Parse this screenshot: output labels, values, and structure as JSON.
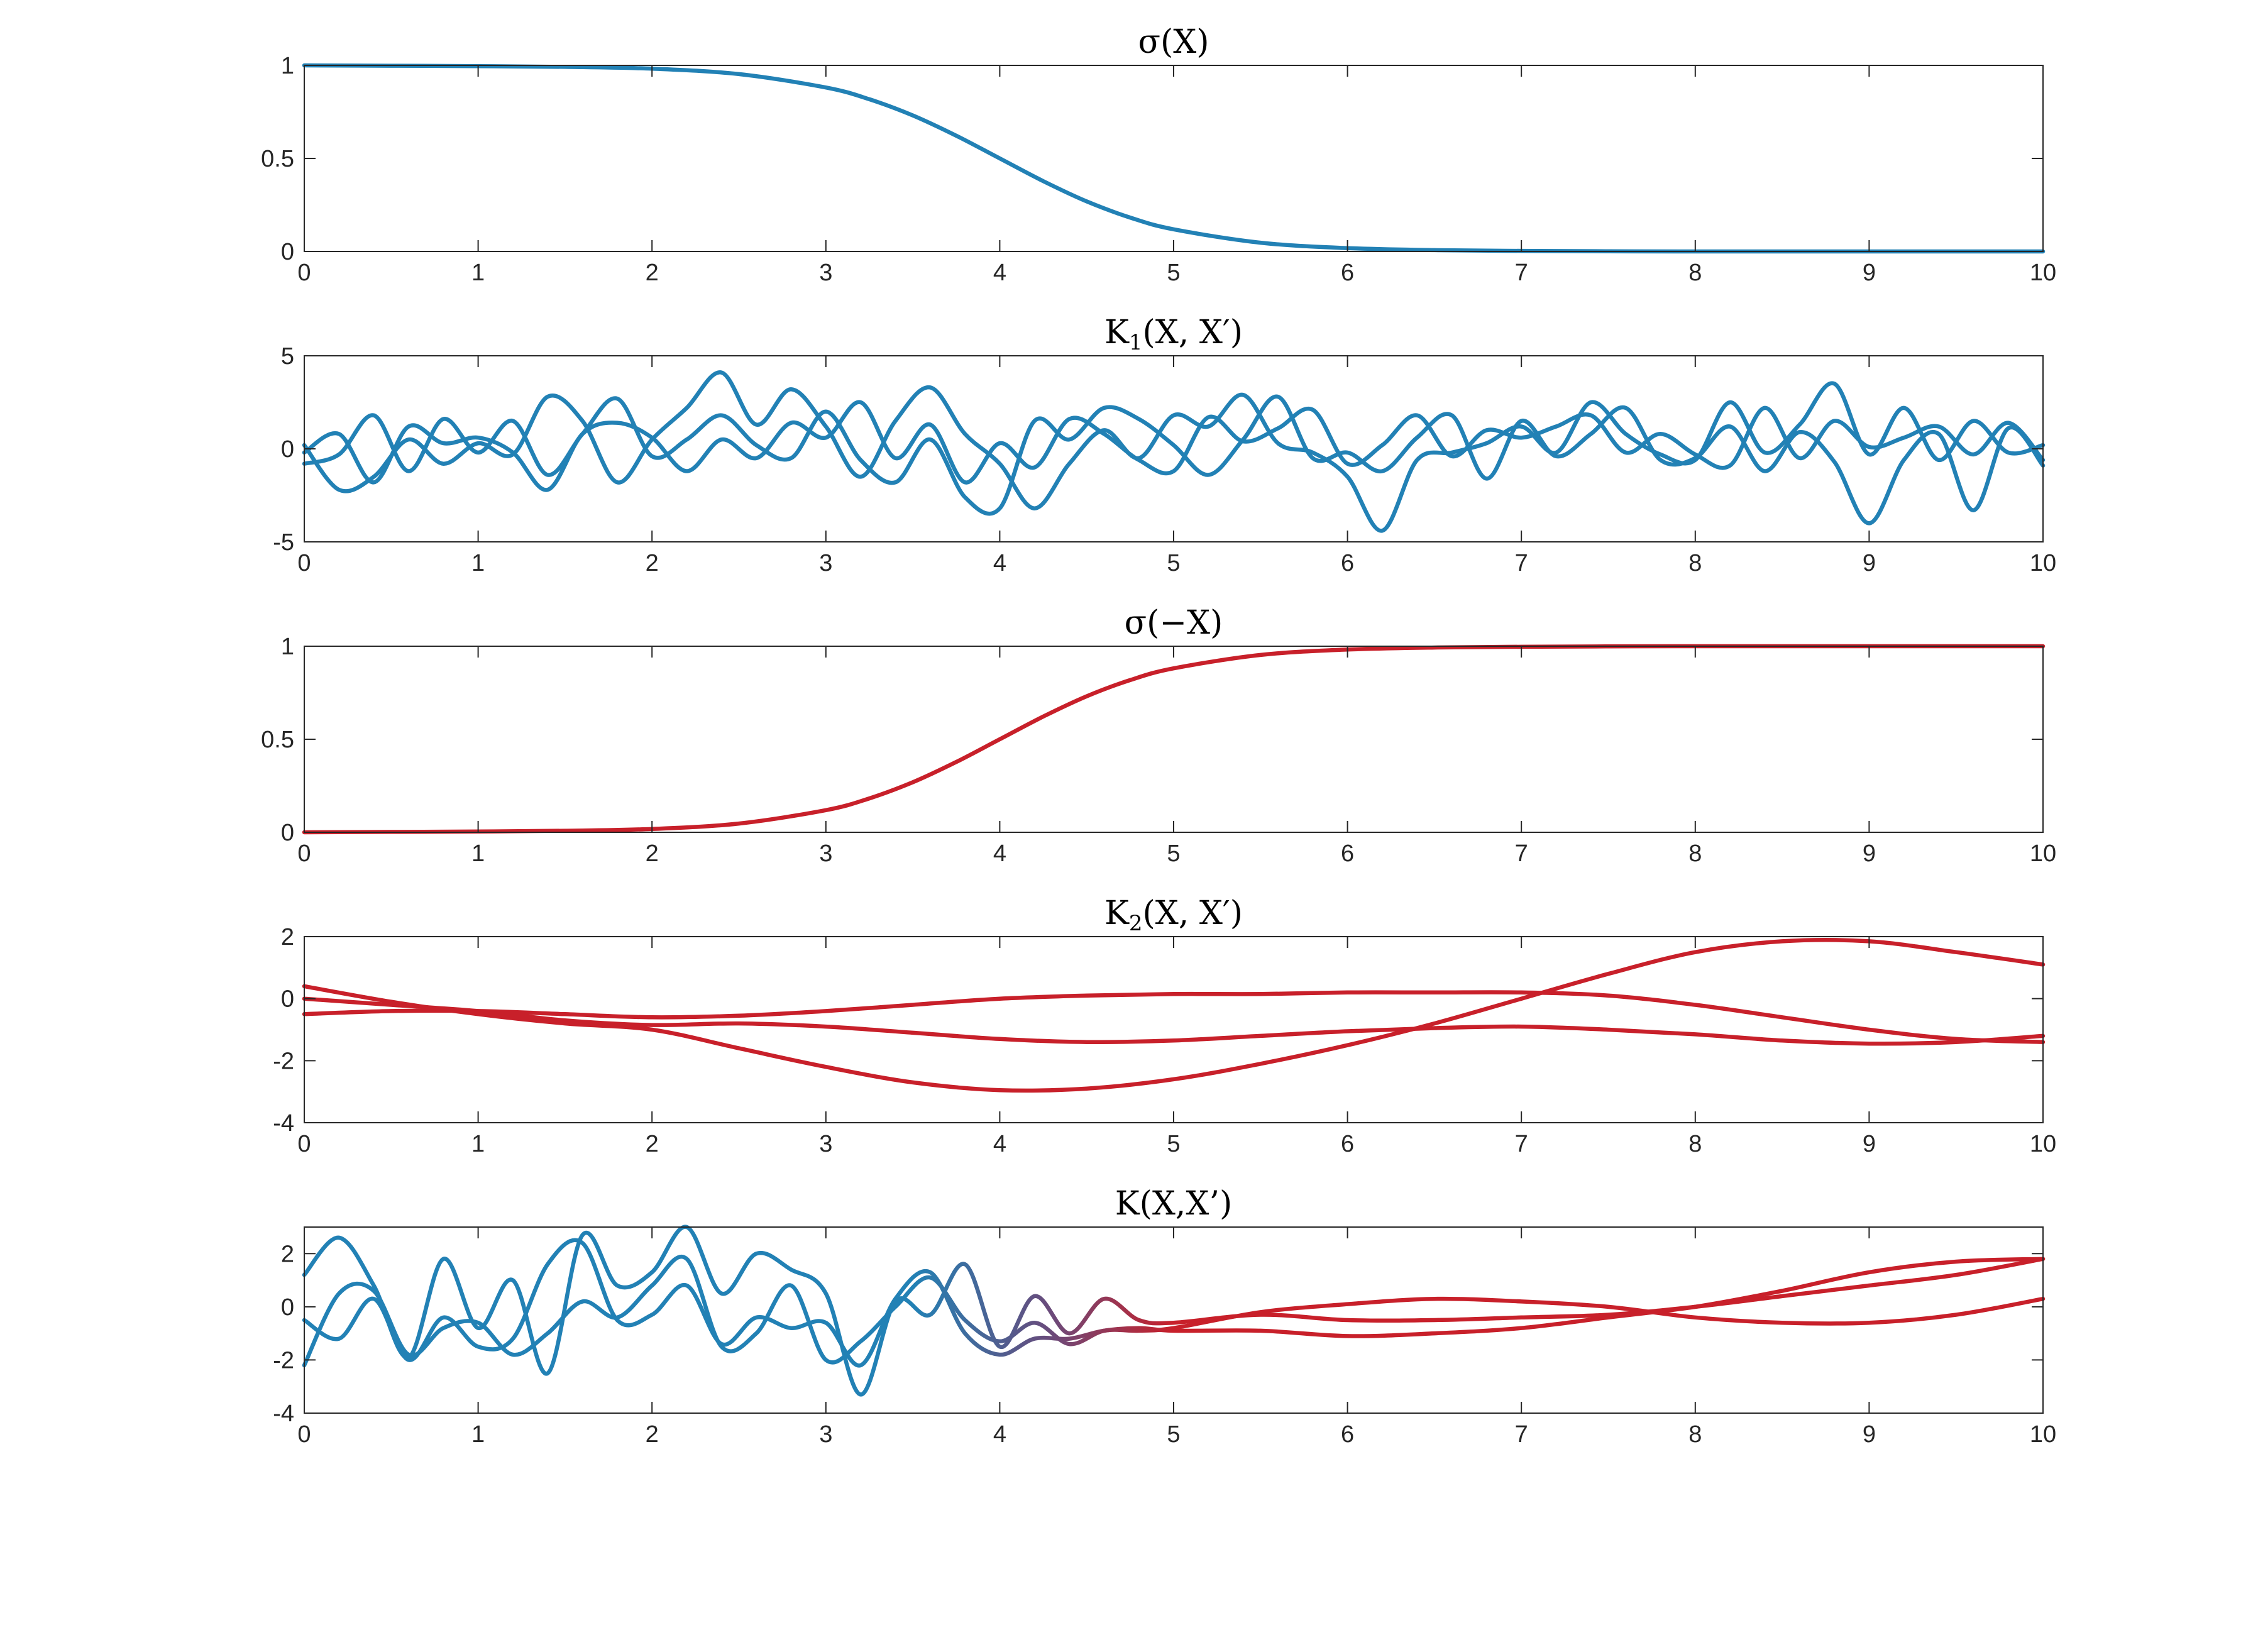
{
  "colors": {
    "blue": "#2281b5",
    "red": "#c8202a"
  },
  "chart_data": [
    {
      "type": "line",
      "title": "σ(X)",
      "xlim": [
        0,
        10
      ],
      "ylim": [
        0,
        1
      ],
      "xticks": [
        "0",
        "1",
        "2",
        "3",
        "4",
        "5",
        "6",
        "7",
        "8",
        "9",
        "10"
      ],
      "yticks": [
        "0",
        "0.5",
        "1"
      ],
      "grid": false,
      "x": [
        0,
        0.5,
        1,
        1.5,
        2,
        2.5,
        3,
        3.25,
        3.5,
        3.75,
        4,
        4.25,
        4.5,
        4.75,
        5,
        5.5,
        6,
        6.5,
        7,
        7.5,
        8,
        9,
        10
      ],
      "series": [
        {
          "color": "#2281b5",
          "values": [
            1,
            0.998,
            0.996,
            0.992,
            0.982,
            0.953,
            0.881,
            0.818,
            0.731,
            0.622,
            0.5,
            0.378,
            0.269,
            0.182,
            0.119,
            0.047,
            0.018,
            0.007,
            0.003,
            0.001,
            0,
            0,
            0
          ]
        }
      ]
    },
    {
      "type": "line",
      "title": "K1(X, X′)",
      "title_parts": {
        "main": "K",
        "sub": "1",
        "rest": "(X, X′)"
      },
      "xlim": [
        0,
        10
      ],
      "ylim": [
        -5,
        5
      ],
      "xticks": [
        "0",
        "1",
        "2",
        "3",
        "4",
        "5",
        "6",
        "7",
        "8",
        "9",
        "10"
      ],
      "yticks": [
        "-5",
        "0",
        "5"
      ],
      "grid": false,
      "x": [
        0,
        0.2,
        0.4,
        0.6,
        0.8,
        1,
        1.2,
        1.4,
        1.6,
        1.8,
        2,
        2.2,
        2.4,
        2.6,
        2.8,
        3,
        3.2,
        3.4,
        3.6,
        3.8,
        4,
        4.2,
        4.4,
        4.6,
        4.8,
        5,
        5.2,
        5.4,
        5.6,
        5.8,
        6,
        6.2,
        6.4,
        6.6,
        6.8,
        7,
        7.2,
        7.4,
        7.6,
        7.8,
        8,
        8.2,
        8.4,
        8.6,
        8.8,
        9,
        9.2,
        9.4,
        9.6,
        9.8,
        10
      ],
      "series": [
        {
          "color": "#2281b5",
          "values": [
            0.2,
            -2.2,
            -1.5,
            0.5,
            -0.8,
            0.3,
            -0.3,
            2.8,
            1.5,
            -1.8,
            0.5,
            2.2,
            4.1,
            1.3,
            3.2,
            1.2,
            -1.5,
            1.5,
            3.3,
            0.8,
            -0.8,
            -3.2,
            -0.8,
            1,
            -0.5,
            1.8,
            1.2,
            2.9,
            0.3,
            -0.2,
            -1.5,
            -4.4,
            -0.6,
            -0.2,
            0.3,
            1.2,
            -0.2,
            2.5,
            0.8,
            -0.3,
            -0.6,
            2.5,
            -0.2,
            1.3,
            3.5,
            -0.3,
            2.2,
            -0.6,
            1.5,
            -0.2,
            0.2
          ]
        },
        {
          "color": "#2281b5",
          "values": [
            -0.2,
            0.8,
            -1.8,
            1.2,
            0.3,
            0.6,
            -0.2,
            -2.2,
            0.8,
            1.4,
            0.6,
            -1.2,
            0.5,
            -0.5,
            1.4,
            0.6,
            2.5,
            -0.5,
            1.3,
            -1.8,
            0.3,
            -1,
            1.6,
            0.8,
            -0.6,
            -1.2,
            1.7,
            0.4,
            1.1,
            2.1,
            -0.8,
            0.2,
            1.8,
            -0.4,
            1,
            0.6,
            1.2,
            1.8,
            -0.2,
            0.8,
            -0.3,
            -0.9,
            2.2,
            -0.5,
            1.5,
            0.1,
            0.6,
            1.2,
            -0.3,
            1.4,
            -0.6
          ]
        },
        {
          "color": "#2281b5",
          "values": [
            -0.8,
            -0.3,
            1.8,
            -1.2,
            1.6,
            -0.2,
            1.5,
            -1.4,
            0.8,
            2.7,
            -0.4,
            0.5,
            1.8,
            0.2,
            -0.5,
            2,
            -0.6,
            -1.8,
            0.5,
            -2.6,
            -3.2,
            1.5,
            0.5,
            2.2,
            1.6,
            0.2,
            -1.4,
            0.5,
            2.8,
            -0.5,
            -0.2,
            -1.2,
            0.6,
            1.8,
            -1.6,
            1.5,
            -0.4,
            0.8,
            2.2,
            -0.6,
            -0.5,
            1.2,
            -1.2,
            0.9,
            -0.7,
            -4,
            -0.6,
            0.8,
            -3.3,
            1.1,
            -0.9
          ]
        }
      ]
    },
    {
      "type": "line",
      "title": "σ(−X)",
      "xlim": [
        0,
        10
      ],
      "ylim": [
        0,
        1
      ],
      "xticks": [
        "0",
        "1",
        "2",
        "3",
        "4",
        "5",
        "6",
        "7",
        "8",
        "9",
        "10"
      ],
      "yticks": [
        "0",
        "0.5",
        "1"
      ],
      "grid": false,
      "x": [
        0,
        0.5,
        1,
        1.5,
        2,
        2.5,
        3,
        3.25,
        3.5,
        3.75,
        4,
        4.25,
        4.5,
        4.75,
        5,
        5.5,
        6,
        6.5,
        7,
        7.5,
        8,
        9,
        10
      ],
      "series": [
        {
          "color": "#c8202a",
          "values": [
            0,
            0.002,
            0.004,
            0.008,
            0.018,
            0.047,
            0.119,
            0.182,
            0.269,
            0.378,
            0.5,
            0.622,
            0.731,
            0.818,
            0.881,
            0.953,
            0.982,
            0.993,
            0.997,
            0.999,
            1,
            1,
            1
          ]
        }
      ]
    },
    {
      "type": "line",
      "title": "K2(X, X′)",
      "title_parts": {
        "main": "K",
        "sub": "2",
        "rest": "(X, X′)"
      },
      "xlim": [
        0,
        10
      ],
      "ylim": [
        -4,
        2
      ],
      "xticks": [
        "0",
        "1",
        "2",
        "3",
        "4",
        "5",
        "6",
        "7",
        "8",
        "9",
        "10"
      ],
      "yticks": [
        "-4",
        "-2",
        "0",
        "2"
      ],
      "grid": false,
      "x": [
        0,
        0.5,
        1,
        1.5,
        2,
        2.5,
        3,
        3.5,
        4,
        4.5,
        5,
        5.5,
        6,
        6.5,
        7,
        7.5,
        8,
        8.5,
        9,
        9.5,
        10
      ],
      "series": [
        {
          "color": "#c8202a",
          "values": [
            -0.5,
            -0.4,
            -0.4,
            -0.5,
            -0.6,
            -0.55,
            -0.4,
            -0.2,
            0,
            0.1,
            0.15,
            0.15,
            0.2,
            0.2,
            0.2,
            0.1,
            -0.2,
            -0.6,
            -1,
            -1.3,
            -1.4
          ]
        },
        {
          "color": "#c8202a",
          "values": [
            0.4,
            -0.1,
            -0.5,
            -0.8,
            -1.0,
            -1.6,
            -2.2,
            -2.7,
            -2.95,
            -2.9,
            -2.6,
            -2.1,
            -1.5,
            -0.8,
            0,
            0.8,
            1.5,
            1.85,
            1.85,
            1.5,
            1.1
          ]
        },
        {
          "color": "#c8202a",
          "values": [
            0,
            -0.2,
            -0.4,
            -0.7,
            -0.85,
            -0.8,
            -0.9,
            -1.1,
            -1.3,
            -1.4,
            -1.35,
            -1.2,
            -1.05,
            -0.95,
            -0.9,
            -1.0,
            -1.15,
            -1.35,
            -1.45,
            -1.4,
            -1.2
          ]
        }
      ]
    },
    {
      "type": "line",
      "title": "K(X,X’)",
      "xlim": [
        0,
        10
      ],
      "ylim": [
        -4,
        3
      ],
      "xticks": [
        "0",
        "1",
        "2",
        "3",
        "4",
        "5",
        "6",
        "7",
        "8",
        "9",
        "10"
      ],
      "yticks": [
        "-4",
        "-2",
        "0",
        "2"
      ],
      "grid": false,
      "color_gradient": "blue (x small) to red (x large), transition near x = 3.5–4.5",
      "x": [
        0,
        0.2,
        0.4,
        0.6,
        0.8,
        1,
        1.2,
        1.4,
        1.6,
        1.8,
        2,
        2.2,
        2.4,
        2.6,
        2.8,
        3,
        3.2,
        3.4,
        3.6,
        3.8,
        4,
        4.2,
        4.4,
        4.6,
        4.8,
        5,
        5.5,
        6,
        6.5,
        7,
        7.5,
        8,
        8.5,
        9,
        9.5,
        10
      ],
      "series": [
        {
          "values": [
            1.2,
            2.6,
            0.8,
            -1.9,
            1.8,
            -0.8,
            1,
            -2.5,
            2.7,
            0.8,
            1.3,
            3,
            0.5,
            2,
            1.4,
            0.5,
            -3.3,
            0.2,
            -0.3,
            1.6,
            -1.5,
            0.4,
            -1,
            0.3,
            -0.5,
            -0.6,
            -0.3,
            -0.5,
            -0.5,
            -0.4,
            -0.3,
            0,
            0.4,
            0.8,
            1.2,
            1.8
          ]
        },
        {
          "values": [
            -0.5,
            -1.2,
            0.3,
            -2,
            -0.4,
            -1.5,
            -1.2,
            1.6,
            2.4,
            -0.5,
            -0.3,
            0.8,
            -1.4,
            -0.4,
            -0.8,
            -0.6,
            -2.2,
            0.3,
            1.3,
            -1.0,
            -1.8,
            -1.2,
            -1.2,
            -0.9,
            -0.8,
            -0.9,
            -0.9,
            -1.1,
            -1.0,
            -0.8,
            -0.4,
            0,
            0.6,
            1.3,
            1.7,
            1.8
          ]
        },
        {
          "values": [
            -2.2,
            0.5,
            0.6,
            -1.8,
            -0.8,
            -0.6,
            -1.8,
            -1.0,
            0.2,
            -0.4,
            0.8,
            1.8,
            -1.5,
            -1.0,
            0.8,
            -2.0,
            -1.3,
            0,
            1.1,
            -0.5,
            -1.3,
            -0.6,
            -1.4,
            -0.9,
            -0.9,
            -0.8,
            -0.2,
            0.1,
            0.3,
            0.2,
            0,
            -0.4,
            -0.6,
            -0.6,
            -0.3,
            0.3
          ]
        }
      ]
    }
  ]
}
